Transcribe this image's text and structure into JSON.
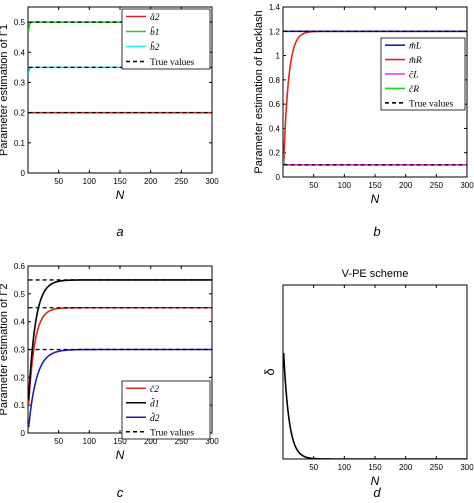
{
  "colors": {
    "red": "#e0261c",
    "green": "#1fd41f",
    "cyan": "#2ce8e8",
    "blue": "#1c1cc0",
    "magenta": "#ee2cee",
    "black": "#000000"
  },
  "chart_data": [
    {
      "id": "a",
      "type": "line",
      "caption": "a",
      "xlabel": "N",
      "ylabel": "Parameter estimation of Γ1",
      "xlim": [
        0,
        300
      ],
      "ylim": [
        0,
        0.55
      ],
      "xticks": [
        50,
        100,
        150,
        200,
        250,
        300
      ],
      "yticks": [
        0,
        0.1,
        0.2,
        0.3,
        0.4,
        0.5
      ],
      "yticklabels": [
        "0",
        "0.1",
        "0.2",
        "0.3",
        "0.4",
        "0.5"
      ],
      "legend": {
        "placement": "top-right",
        "entries": [
          "â2",
          "b̂1",
          "b̂2",
          "True values"
        ]
      },
      "series": [
        {
          "name": "â2",
          "color": "red",
          "start": 0.2,
          "final": 0.2,
          "tau": 1
        },
        {
          "name": "b̂1",
          "color": "green",
          "start": 0.47,
          "final": 0.5,
          "tau": 1.2
        },
        {
          "name": "b̂2",
          "color": "cyan",
          "start": 0.33,
          "final": 0.35,
          "tau": 1.2
        }
      ],
      "true_values": [
        0.2,
        0.35,
        0.5
      ]
    },
    {
      "id": "b",
      "type": "line",
      "caption": "b",
      "xlabel": "N",
      "ylabel": "Parameter estimation of backlash",
      "xlim": [
        0,
        300
      ],
      "ylim": [
        0,
        1.4
      ],
      "xticks": [
        50,
        100,
        150,
        200,
        250,
        300
      ],
      "yticks": [
        0,
        0.2,
        0.4,
        0.6,
        0.8,
        1,
        1.2,
        1.4
      ],
      "yticklabels": [
        "0",
        "0.2",
        "0.4",
        "0.6",
        "0.8",
        "1",
        "1.2",
        "1.4"
      ],
      "legend": {
        "placement": "right",
        "entries": [
          "m̂L",
          "m̂R",
          "ĉL",
          "ĉR",
          "True values"
        ]
      },
      "series": [
        {
          "name": "m̂R",
          "color": "red",
          "start": 0.1,
          "final": 1.2,
          "tau": 8
        },
        {
          "name": "m̂L",
          "color": "blue",
          "start": 1.2,
          "final": 1.2,
          "tau": 1
        },
        {
          "name": "ĉR",
          "color": "green",
          "start": 0.13,
          "final": 0.1,
          "tau": 1.2
        },
        {
          "name": "ĉL",
          "color": "magenta",
          "start": 0.1,
          "final": 0.1,
          "tau": 1
        }
      ],
      "true_values": [
        0.1,
        1.2
      ]
    },
    {
      "id": "c",
      "type": "line",
      "caption": "c",
      "xlabel": "N",
      "ylabel": "Parameter estimation of Γ2",
      "xlim": [
        0,
        300
      ],
      "ylim": [
        0,
        0.6
      ],
      "xticks": [
        50,
        100,
        150,
        200,
        250,
        300
      ],
      "yticks": [
        0,
        0.1,
        0.2,
        0.3,
        0.4,
        0.5,
        0.6
      ],
      "yticklabels": [
        "0",
        "0.1",
        "0.2",
        "0.3",
        "0.4",
        "0.5",
        "0.6"
      ],
      "legend": {
        "placement": "bottom-right",
        "entries": [
          "ĉ2",
          "d̂1",
          "d̂2",
          "True values"
        ]
      },
      "series": [
        {
          "name": "ĉ2",
          "color": "red",
          "start": 0.1,
          "final": 0.45,
          "tau": 10
        },
        {
          "name": "d̂1",
          "color": "black",
          "start": 0.12,
          "final": 0.55,
          "tau": 11
        },
        {
          "name": "d̂2",
          "color": "blue",
          "start": 0.02,
          "final": 0.3,
          "tau": 13
        }
      ],
      "true_values": [
        0.3,
        0.45,
        0.55
      ]
    },
    {
      "id": "d",
      "type": "line",
      "title": "V-PE scheme",
      "caption": "d",
      "xlabel": "N",
      "ylabel": "δ",
      "xlim": [
        0,
        300
      ],
      "ylim": [
        0,
        1
      ],
      "xticks": [
        50,
        100,
        150,
        200,
        250,
        300
      ],
      "yticks": [],
      "yticklabels": [],
      "legend": null,
      "series": [
        {
          "name": "",
          "color": "black",
          "start": 0.61,
          "final": 0.0,
          "tau": 9
        }
      ],
      "true_values": []
    }
  ]
}
